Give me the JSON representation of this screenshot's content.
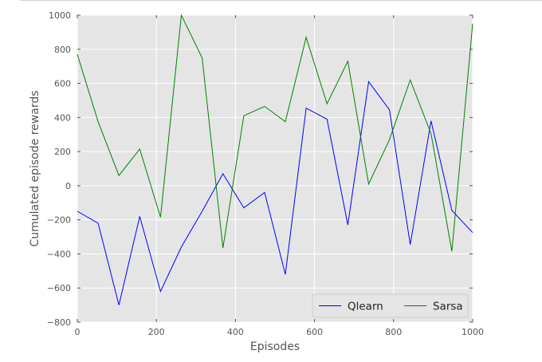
{
  "chart_data": {
    "type": "line",
    "title": "",
    "xlabel": "Episodes",
    "ylabel": "Cumulated episode rewards",
    "xlim": [
      0,
      1000
    ],
    "ylim": [
      -800,
      1000
    ],
    "xticks": [
      "0",
      "200",
      "400",
      "600",
      "800",
      "1000"
    ],
    "yticks": [
      "−800",
      "−600",
      "−400",
      "−200",
      "0",
      "200",
      "400",
      "600",
      "800",
      "1000"
    ],
    "grid": true,
    "legend_position": "bottom-right",
    "colors": {
      "plot_background": "#e5e5e5",
      "grid": "#ffffff"
    },
    "x": [
      0,
      52.6,
      105.3,
      157.9,
      210.5,
      263.2,
      315.8,
      368.4,
      421.1,
      473.7,
      526.3,
      578.9,
      631.6,
      684.2,
      736.8,
      789.5,
      842.1,
      894.7,
      947.4,
      1000
    ],
    "series": [
      {
        "name": "Qlearn",
        "color": "#0000ff",
        "values": [
          -150,
          -220,
          -700,
          -180,
          -620,
          -360,
          -150,
          70,
          -130,
          -40,
          -520,
          455,
          390,
          -230,
          610,
          445,
          -345,
          380,
          -145,
          -275
        ]
      },
      {
        "name": "Sarsa",
        "color": "#008000",
        "values": [
          770,
          375,
          60,
          215,
          -185,
          1000,
          750,
          -365,
          410,
          465,
          375,
          870,
          480,
          730,
          10,
          270,
          620,
          305,
          -385,
          950
        ]
      }
    ]
  }
}
